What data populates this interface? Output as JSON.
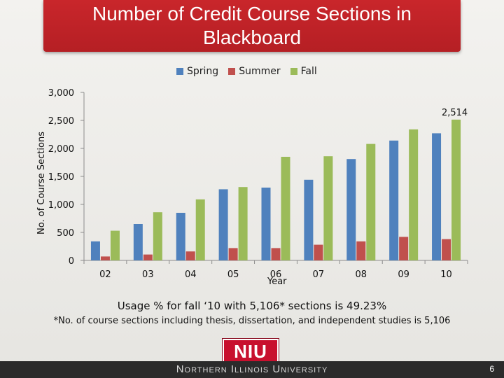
{
  "slide": {
    "title": "Number of Credit Course Sections in Blackboard",
    "usage_note": "Usage % for fall ‘10 with 5,106* sections is 49.23%",
    "footnote": "*No. of course sections including thesis, dissertation, and independent studies is 5,106",
    "logo_text": "NIU",
    "footer_text": "Northern Illinois University",
    "page_number": "6"
  },
  "colors": {
    "title_bg": "#c1232a",
    "spring": "#4f81bd",
    "summer": "#c0504d",
    "fall": "#9bbb59",
    "footer_bg": "#2b2b2b"
  },
  "chart_data": {
    "type": "bar",
    "title": "",
    "xlabel": "Year",
    "ylabel": "No. of Course Sections",
    "categories": [
      "02",
      "03",
      "04",
      "05",
      "06",
      "07",
      "08",
      "09",
      "10"
    ],
    "ylim": [
      0,
      3000
    ],
    "yticks": [
      0,
      500,
      1000,
      1500,
      2000,
      2500,
      3000
    ],
    "ytick_labels": [
      "0",
      "500",
      "1,000",
      "1,500",
      "2,000",
      "2,500",
      "3,000"
    ],
    "grid": false,
    "legend_position": "top-center",
    "series": [
      {
        "name": "Spring",
        "color": "#4f81bd",
        "values": [
          340,
          650,
          850,
          1270,
          1300,
          1440,
          1810,
          2140,
          2270
        ]
      },
      {
        "name": "Summer",
        "color": "#c0504d",
        "values": [
          70,
          105,
          160,
          220,
          220,
          280,
          340,
          420,
          380
        ]
      },
      {
        "name": "Fall",
        "color": "#9bbb59",
        "values": [
          530,
          860,
          1090,
          1310,
          1850,
          1860,
          2080,
          2340,
          2514
        ]
      }
    ],
    "annotations": [
      {
        "series": "Fall",
        "category": "10",
        "text": "2,514"
      }
    ]
  }
}
